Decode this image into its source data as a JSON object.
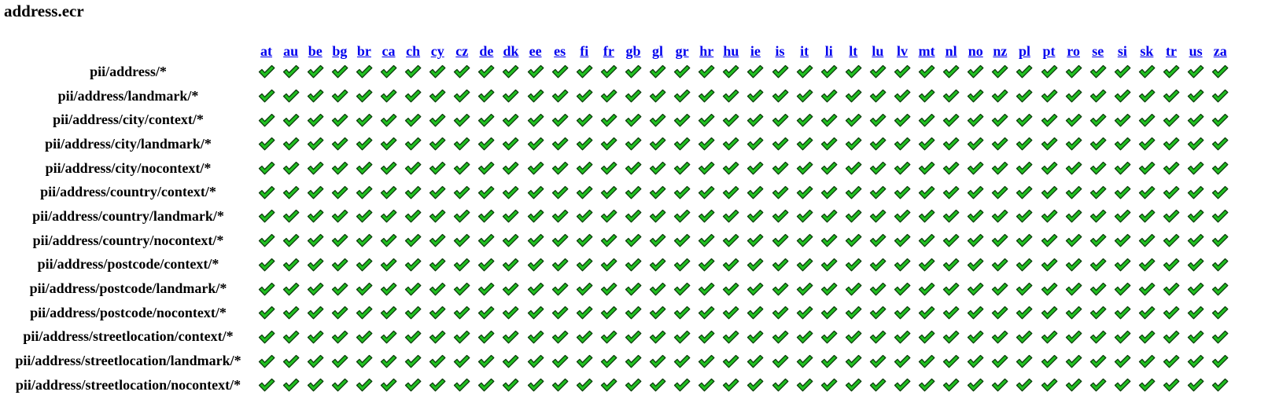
{
  "page": {
    "title": "address.ecr"
  },
  "matrix": {
    "columns": [
      "at",
      "au",
      "be",
      "bg",
      "br",
      "ca",
      "ch",
      "cy",
      "cz",
      "de",
      "dk",
      "ee",
      "es",
      "fi",
      "fr",
      "gb",
      "gl",
      "gr",
      "hr",
      "hu",
      "ie",
      "is",
      "it",
      "li",
      "lt",
      "lu",
      "lv",
      "mt",
      "nl",
      "no",
      "nz",
      "pl",
      "pt",
      "ro",
      "se",
      "si",
      "sk",
      "tr",
      "us",
      "za"
    ],
    "rows": [
      "pii/address/*",
      "pii/address/landmark/*",
      "pii/address/city/context/*",
      "pii/address/city/landmark/*",
      "pii/address/city/nocontext/*",
      "pii/address/country/context/*",
      "pii/address/country/landmark/*",
      "pii/address/country/nocontext/*",
      "pii/address/postcode/context/*",
      "pii/address/postcode/landmark/*",
      "pii/address/postcode/nocontext/*",
      "pii/address/streetlocation/context/*",
      "pii/address/streetlocation/landmark/*",
      "pii/address/streetlocation/nocontext/*"
    ],
    "cell_status": "pass",
    "cell_icon": "check-icon",
    "check_fill": "#22c022",
    "check_stroke": "#0b3d0b",
    "link_color": "#0000ee"
  }
}
